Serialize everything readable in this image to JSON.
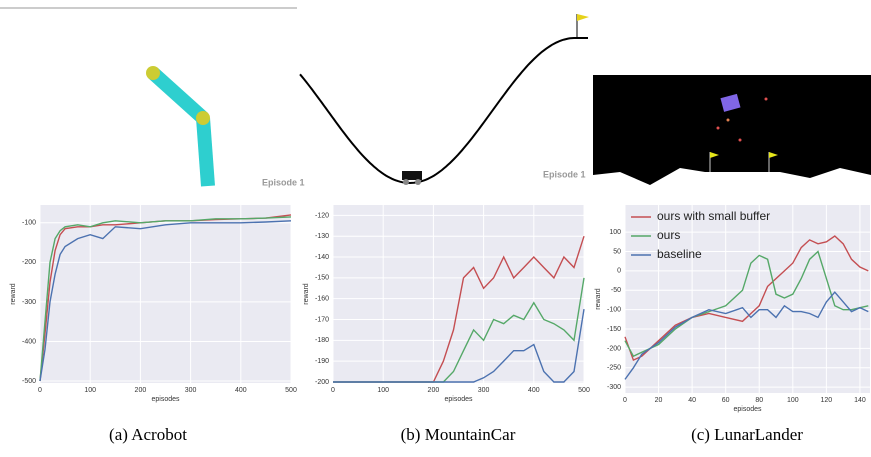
{
  "chart_data": [
    {
      "type": "line",
      "xlabel": "episodes",
      "ylabel": "reward",
      "x": [
        0,
        10,
        20,
        30,
        40,
        50,
        75,
        100,
        125,
        150,
        200,
        250,
        300,
        350,
        400,
        450,
        500
      ],
      "series": [
        {
          "color": "#c44e52",
          "values": [
            -500,
            -380,
            -250,
            -170,
            -130,
            -115,
            -110,
            -110,
            -105,
            -105,
            -100,
            -95,
            -95,
            -92,
            -90,
            -88,
            -80
          ]
        },
        {
          "color": "#55a868",
          "values": [
            -500,
            -350,
            -200,
            -140,
            -120,
            -110,
            -105,
            -110,
            -100,
            -95,
            -100,
            -95,
            -95,
            -90,
            -90,
            -88,
            -85
          ]
        },
        {
          "color": "#4c72b0",
          "values": [
            -500,
            -420,
            -300,
            -230,
            -180,
            -160,
            -140,
            -130,
            -140,
            -110,
            -115,
            -105,
            -100,
            -100,
            -100,
            -98,
            -95
          ]
        }
      ],
      "xlim": [
        0,
        500
      ],
      "ylim": [
        -505,
        -55
      ],
      "xticks": [
        0,
        100,
        200,
        300,
        400,
        500
      ],
      "yticks": [
        -500,
        -400,
        -300,
        -200,
        -100
      ],
      "grid": true
    },
    {
      "type": "line",
      "xlabel": "episodes",
      "ylabel": "reward",
      "x": [
        0,
        50,
        100,
        150,
        200,
        220,
        240,
        260,
        280,
        300,
        320,
        340,
        360,
        380,
        400,
        420,
        440,
        460,
        480,
        500
      ],
      "series": [
        {
          "color": "#c44e52",
          "values": [
            -200,
            -200,
            -200,
            -200,
            -200,
            -190,
            -175,
            -150,
            -145,
            -155,
            -150,
            -140,
            -150,
            -145,
            -140,
            -145,
            -150,
            -140,
            -145,
            -130
          ]
        },
        {
          "color": "#55a868",
          "values": [
            -200,
            -200,
            -200,
            -200,
            -200,
            -200,
            -195,
            -185,
            -175,
            -180,
            -170,
            -172,
            -168,
            -170,
            -162,
            -170,
            -172,
            -175,
            -180,
            -150
          ]
        },
        {
          "color": "#4c72b0",
          "values": [
            -200,
            -200,
            -200,
            -200,
            -200,
            -200,
            -200,
            -200,
            -200,
            -198,
            -195,
            -190,
            -185,
            -185,
            -182,
            -195,
            -200,
            -200,
            -195,
            -165
          ]
        }
      ],
      "xlim": [
        0,
        500
      ],
      "ylim": [
        -200.5,
        -115
      ],
      "xticks": [
        0,
        100,
        200,
        300,
        400,
        500
      ],
      "yticks": [
        -200,
        -190,
        -180,
        -170,
        -160,
        -150,
        -140,
        -130,
        -120
      ],
      "grid": true
    },
    {
      "type": "line",
      "xlabel": "episodes",
      "ylabel": "reward",
      "legend": "upper left",
      "x": [
        0,
        5,
        10,
        20,
        30,
        40,
        50,
        60,
        70,
        75,
        80,
        85,
        90,
        95,
        100,
        105,
        110,
        115,
        120,
        125,
        130,
        135,
        140,
        145
      ],
      "series": [
        {
          "name": "ours with small buffer",
          "color": "#c44e52",
          "values": [
            -170,
            -230,
            -220,
            -180,
            -140,
            -120,
            -110,
            -120,
            -130,
            -110,
            -90,
            -40,
            -20,
            0,
            20,
            60,
            80,
            70,
            75,
            90,
            70,
            30,
            10,
            0
          ]
        },
        {
          "name": "ours",
          "color": "#55a868",
          "values": [
            -180,
            -220,
            -210,
            -190,
            -150,
            -120,
            -105,
            -90,
            -50,
            20,
            40,
            30,
            -60,
            -70,
            -60,
            -20,
            30,
            50,
            -20,
            -90,
            -100,
            -100,
            -95,
            -90
          ]
        },
        {
          "name": "baseline",
          "color": "#4c72b0",
          "values": [
            -280,
            -250,
            -215,
            -185,
            -145,
            -120,
            -100,
            -110,
            -95,
            -120,
            -100,
            -100,
            -120,
            -90,
            -105,
            -105,
            -110,
            -120,
            -80,
            -55,
            -80,
            -105,
            -95,
            -105
          ]
        }
      ],
      "xlim": [
        0,
        146
      ],
      "ylim": [
        -315,
        170
      ],
      "xticks": [
        0,
        20,
        40,
        60,
        80,
        100,
        120,
        140
      ],
      "yticks": [
        -300,
        -250,
        -200,
        -150,
        -100,
        -50,
        0,
        50,
        100
      ],
      "grid": true
    }
  ],
  "figure": {
    "captions": [
      "(a) Acrobot",
      "(b) MountainCar",
      "(c) LunarLander"
    ],
    "episode_labels": [
      "Episode 1",
      "Episode 1"
    ]
  }
}
